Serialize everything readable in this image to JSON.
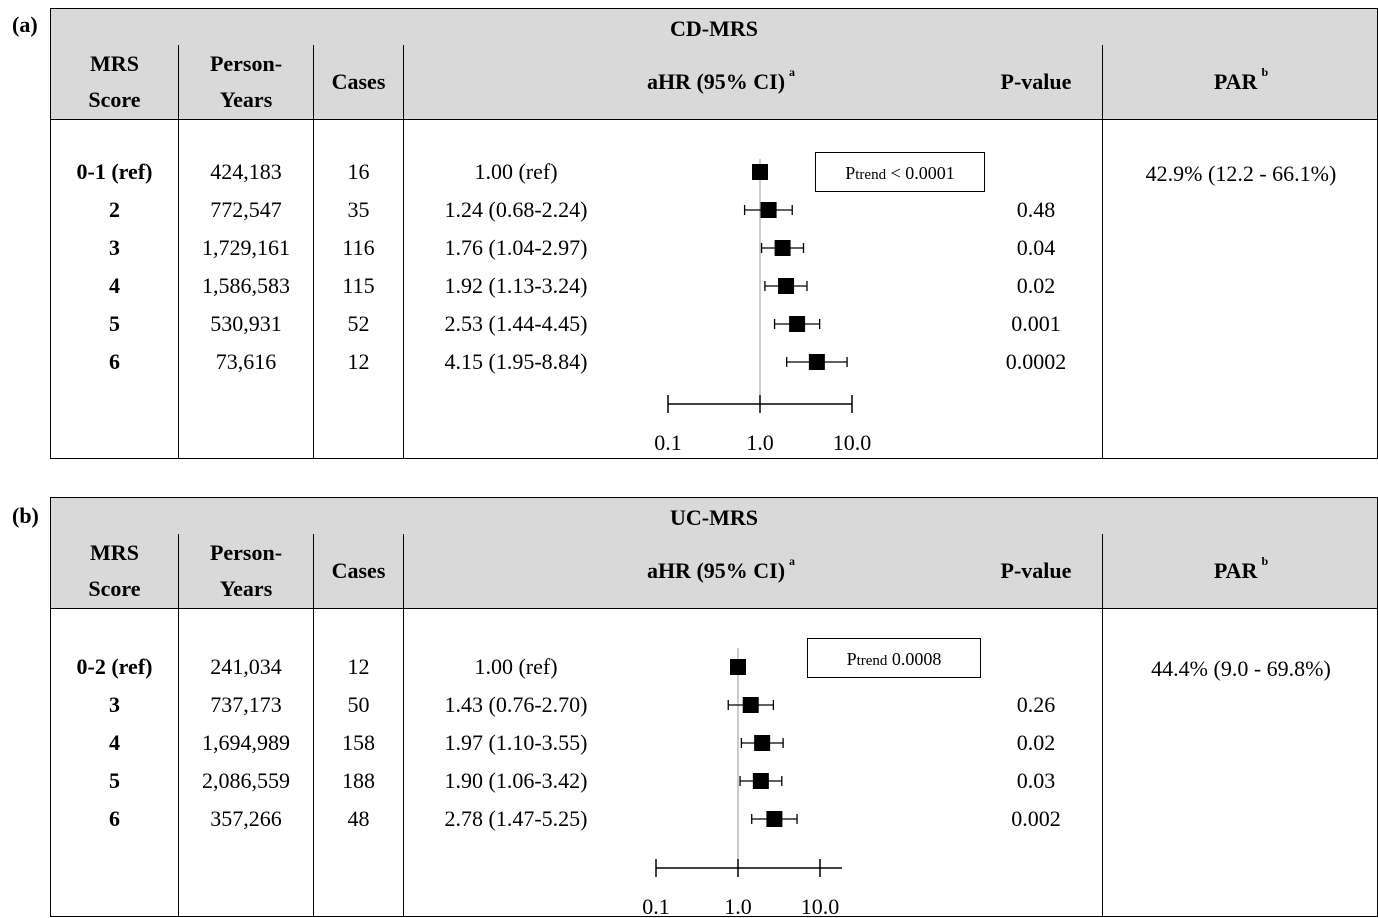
{
  "panels": [
    {
      "tag": "(a)",
      "title": "CD-MRS",
      "headers": {
        "score": "MRS Score",
        "person_years": "Person-Years",
        "cases": "Cases",
        "ahr": "aHR (95% CI)",
        "ahr_sup": "a",
        "pvalue": "P-value",
        "par": "PAR",
        "par_sup": "b"
      },
      "ptrend_label": "Ptrend",
      "ptrend_value": "< 0.0001",
      "par_value": "42.9% (12.2 - 66.1%)",
      "axis_ticks": [
        "0.1",
        "1.0",
        "10.0"
      ],
      "rows": [
        {
          "score": "0-1 (ref)",
          "person_years": "424,183",
          "cases": "16",
          "ahr_text": "1.00 (ref)",
          "pvalue": ""
        },
        {
          "score": "2",
          "person_years": "772,547",
          "cases": "35",
          "ahr_text": "1.24 (0.68-2.24)",
          "pvalue": "0.48"
        },
        {
          "score": "3",
          "person_years": "1,729,161",
          "cases": "116",
          "ahr_text": "1.76 (1.04-2.97)",
          "pvalue": "0.04"
        },
        {
          "score": "4",
          "person_years": "1,586,583",
          "cases": "115",
          "ahr_text": "1.92 (1.13-3.24)",
          "pvalue": "0.02"
        },
        {
          "score": "5",
          "person_years": "530,931",
          "cases": "52",
          "ahr_text": "2.53 (1.44-4.45)",
          "pvalue": "0.001"
        },
        {
          "score": "6",
          "person_years": "73,616",
          "cases": "12",
          "ahr_text": "4.15 (1.95-8.84)",
          "pvalue": "0.0002"
        }
      ]
    },
    {
      "tag": "(b)",
      "title": "UC-MRS",
      "headers": {
        "score": "MRS Score",
        "person_years": "Person-Years",
        "cases": "Cases",
        "ahr": "aHR (95% CI)",
        "ahr_sup": "a",
        "pvalue": "P-value",
        "par": "PAR",
        "par_sup": "b"
      },
      "ptrend_label": "Ptrend",
      "ptrend_value": "0.0008",
      "par_value": "44.4% (9.0 - 69.8%)",
      "axis_ticks": [
        "0.1",
        "1.0",
        "10.0"
      ],
      "rows": [
        {
          "score": "0-2 (ref)",
          "person_years": "241,034",
          "cases": "12",
          "ahr_text": "1.00 (ref)",
          "pvalue": ""
        },
        {
          "score": "3",
          "person_years": "737,173",
          "cases": "50",
          "ahr_text": "1.43 (0.76-2.70)",
          "pvalue": "0.26"
        },
        {
          "score": "4",
          "person_years": "1,694,989",
          "cases": "158",
          "ahr_text": "1.97 (1.10-3.55)",
          "pvalue": "0.02"
        },
        {
          "score": "5",
          "person_years": "2,086,559",
          "cases": "188",
          "ahr_text": "1.90 (1.06-3.42)",
          "pvalue": "0.03"
        },
        {
          "score": "6",
          "person_years": "357,266",
          "cases": "48",
          "ahr_text": "2.78 (1.47-5.25)",
          "pvalue": "0.002"
        }
      ]
    }
  ],
  "chart_data": [
    {
      "type": "scatter",
      "title": "CD-MRS",
      "x_scale": "log",
      "xlim": [
        0.1,
        10.0
      ],
      "categories": [
        "0-1 (ref)",
        "2",
        "3",
        "4",
        "5",
        "6"
      ],
      "ahr": [
        1.0,
        1.24,
        1.76,
        1.92,
        2.53,
        4.15
      ],
      "ci_low": [
        1.0,
        0.68,
        1.04,
        1.13,
        1.44,
        1.95
      ],
      "ci_high": [
        1.0,
        2.24,
        2.97,
        3.24,
        4.45,
        8.84
      ],
      "ref_line": 1.0
    },
    {
      "type": "scatter",
      "title": "UC-MRS",
      "x_scale": "log",
      "xlim": [
        0.1,
        10.0
      ],
      "categories": [
        "0-2 (ref)",
        "3",
        "4",
        "5",
        "6"
      ],
      "ahr": [
        1.0,
        1.43,
        1.97,
        1.9,
        2.78
      ],
      "ci_low": [
        1.0,
        0.76,
        1.1,
        1.06,
        1.47
      ],
      "ci_high": [
        1.0,
        2.7,
        3.55,
        3.42,
        5.25
      ],
      "ref_line": 1.0
    }
  ]
}
